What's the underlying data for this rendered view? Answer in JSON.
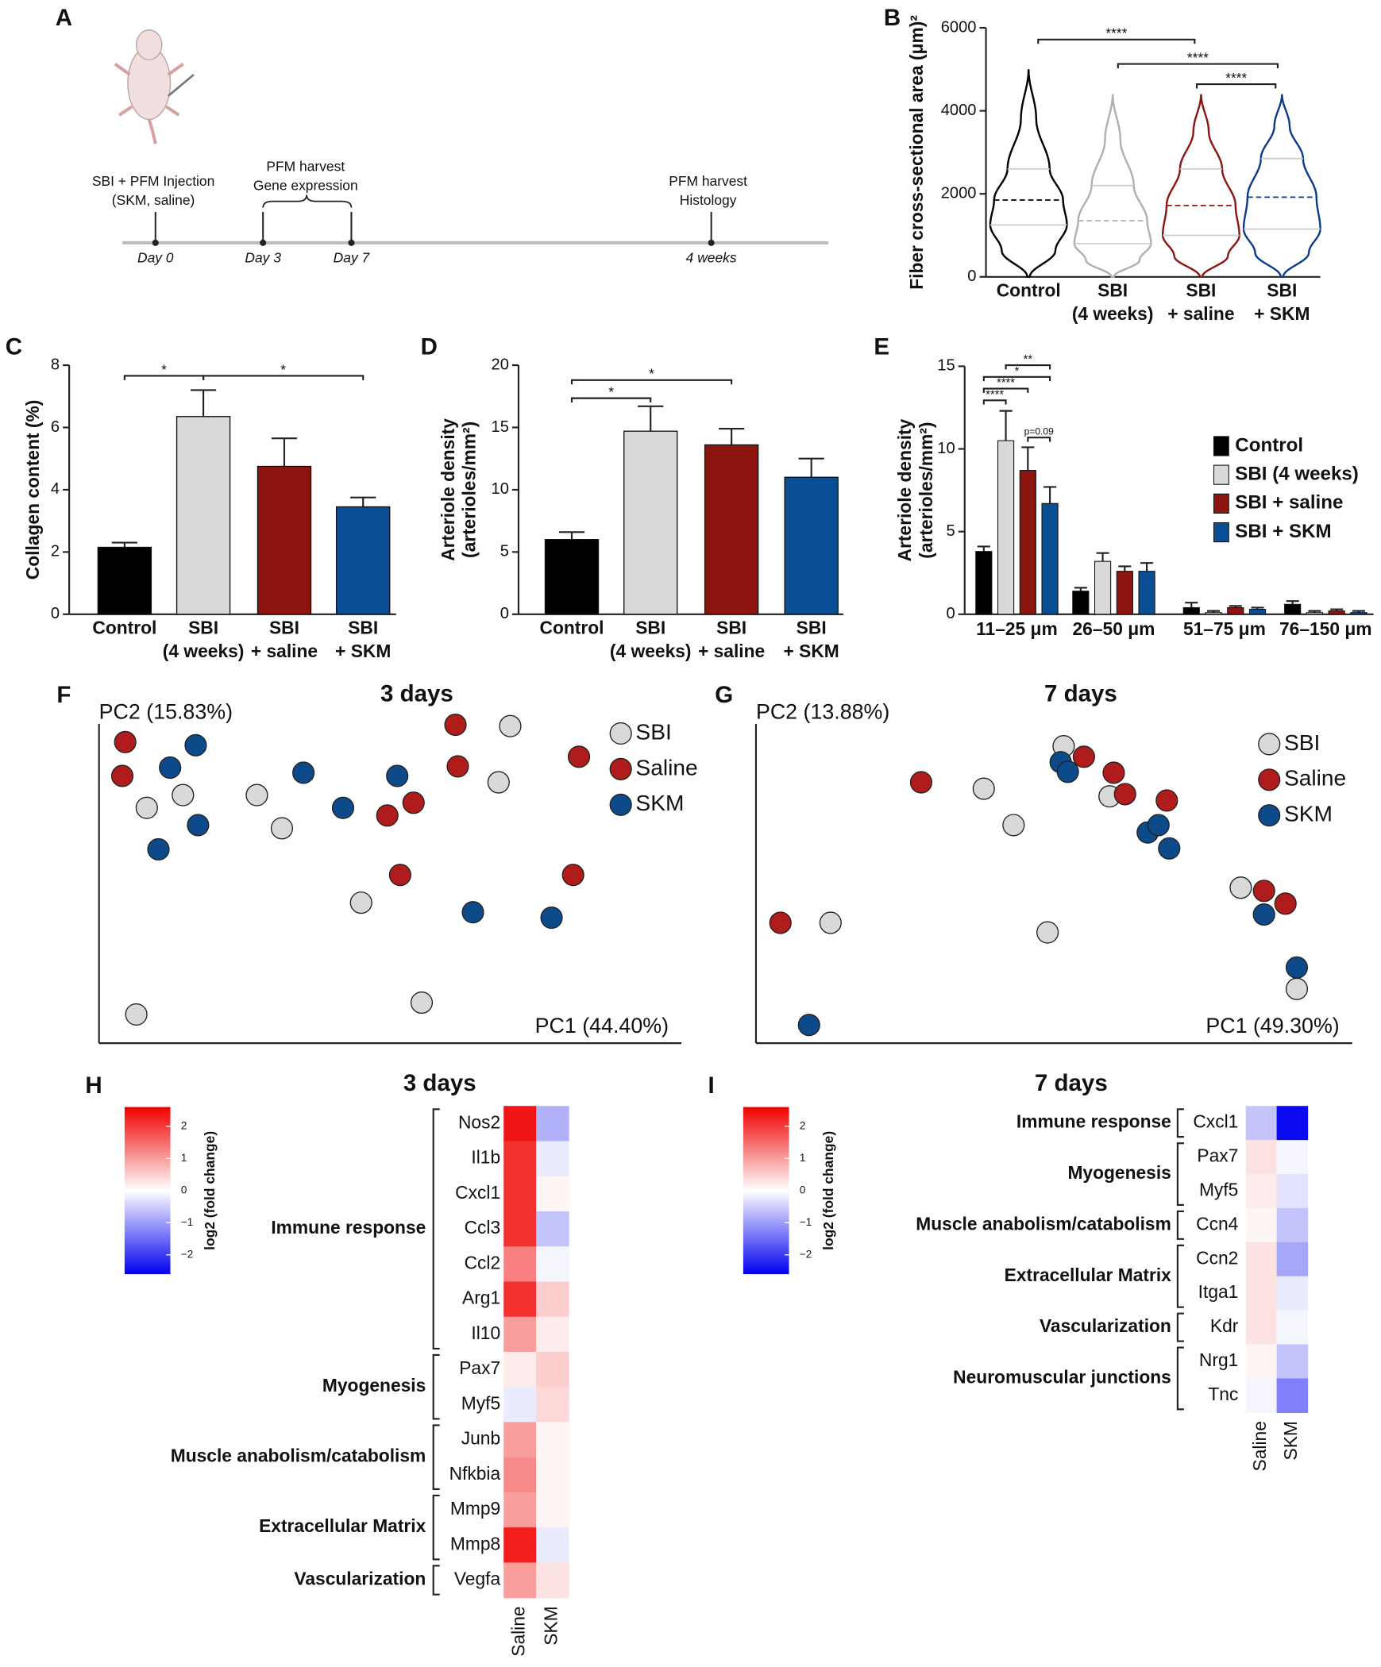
{
  "timeline": {
    "panel": "A",
    "days": [
      "Day 0",
      "Day 3",
      "Day 7",
      "4 weeks"
    ],
    "notes": [
      [
        "SBI + PFM Injection",
        "(SKM, saline)"
      ],
      [
        "PFM harvest",
        "Gene expression"
      ],
      [
        "PFM harvest",
        "Histology"
      ]
    ]
  },
  "chart_data": [
    {
      "panel": "B",
      "type": "violin",
      "categories": [
        [
          "Control"
        ],
        [
          "SBI",
          "(4 weeks)"
        ],
        [
          "SBI",
          "+ saline"
        ],
        [
          "SBI",
          "+ SKM"
        ]
      ],
      "colors": [
        "#000000",
        "#b0b0b0",
        "#8c1515",
        "#0b3c8c"
      ],
      "min": [
        0,
        0,
        0,
        0
      ],
      "q1": [
        1250,
        800,
        1000,
        1150
      ],
      "median": [
        1850,
        1350,
        1720,
        1920
      ],
      "q3": [
        2600,
        2200,
        2600,
        2850
      ],
      "max": [
        5000,
        4400,
        4400,
        4400
      ],
      "ylim": [
        0,
        6000
      ],
      "yticks": [
        0,
        2000,
        4000,
        6000
      ],
      "ylabel": [
        "Fiber cross-sectional area (μm)²"
      ],
      "annotations": [
        "****",
        "****",
        "****"
      ]
    },
    {
      "panel": "C",
      "type": "bar",
      "categories": [
        [
          "Control"
        ],
        [
          "SBI",
          "(4 weeks)"
        ],
        [
          "SBI",
          "+ saline"
        ],
        [
          "SBI",
          "+ SKM"
        ]
      ],
      "colors": [
        "#000000",
        "#d9d9d9",
        "#8c1510",
        "#0a4f96"
      ],
      "values": [
        2.15,
        6.35,
        4.75,
        3.45
      ],
      "errors": [
        0.15,
        0.85,
        0.9,
        0.3
      ],
      "ylim": [
        0,
        8
      ],
      "yticks": [
        0,
        2,
        4,
        6,
        8
      ],
      "ylabel": [
        "Collagen content (%)"
      ],
      "annotations": [
        "*",
        "*"
      ]
    },
    {
      "panel": "D",
      "type": "bar",
      "categories": [
        [
          "Control"
        ],
        [
          "SBI",
          "(4 weeks)"
        ],
        [
          "SBI",
          "+ saline"
        ],
        [
          "SBI",
          "+ SKM"
        ]
      ],
      "colors": [
        "#000000",
        "#d9d9d9",
        "#8c1510",
        "#0a4f96"
      ],
      "values": [
        6.0,
        14.7,
        13.6,
        11.0
      ],
      "errors": [
        0.6,
        2.0,
        1.3,
        1.5
      ],
      "ylim": [
        0,
        20
      ],
      "yticks": [
        0,
        5,
        10,
        15,
        20
      ],
      "ylabel": [
        "Arteriole density",
        "(arterioles/mm²)"
      ],
      "annotations": [
        "*",
        "*"
      ]
    },
    {
      "panel": "E",
      "type": "grouped_bar",
      "categories": [
        "11–25 μm",
        "26–50 μm",
        "51–75 μm",
        "76–150 μm"
      ],
      "series": [
        {
          "name": "Control",
          "color": "#000000",
          "values": [
            3.8,
            1.4,
            0.4,
            0.6
          ],
          "errors": [
            0.3,
            0.2,
            0.3,
            0.2
          ]
        },
        {
          "name": "SBI (4 weeks)",
          "color": "#d9d9d9",
          "values": [
            10.5,
            3.2,
            0.1,
            0.1
          ],
          "errors": [
            1.8,
            0.5,
            0.1,
            0.1
          ]
        },
        {
          "name": "SBI + saline",
          "color": "#8c1510",
          "values": [
            8.7,
            2.6,
            0.4,
            0.2
          ],
          "errors": [
            1.4,
            0.3,
            0.1,
            0.1
          ]
        },
        {
          "name": "SBI + SKM",
          "color": "#0a4f96",
          "values": [
            6.7,
            2.6,
            0.3,
            0.1
          ],
          "errors": [
            1.0,
            0.5,
            0.1,
            0.1
          ]
        }
      ],
      "ylim": [
        0,
        15
      ],
      "yticks": [
        0,
        5,
        10,
        15
      ],
      "ylabel": [
        "Arteriole density",
        "(arterioles/mm²)"
      ],
      "legend": "right",
      "annotations": [
        "****",
        "****",
        "*",
        "**",
        "p=0.09"
      ]
    },
    {
      "panel": "F",
      "type": "scatter",
      "title": "3 days",
      "xlabel": "PC1 (44.40%)",
      "ylabel": "PC2 (15.83%)",
      "xlim": [
        0,
        100
      ],
      "ylim": [
        0,
        100
      ],
      "legend": "upper right",
      "series": [
        {
          "name": "SBI",
          "color": "#d9d9d9",
          "x": [
            6.4,
            8.2,
            14.4,
            27.1,
            31.4,
            45,
            55.4,
            68.6,
            70.6
          ],
          "y": [
            9,
            73.7,
            77.7,
            77.7,
            67.3,
            44,
            12.7,
            81.7,
            99.3
          ]
        },
        {
          "name": "Saline",
          "color": "#b01c1c",
          "x": [
            4.5,
            4,
            49.5,
            54,
            61.2,
            61.6,
            51.7,
            81.4,
            82.4
          ],
          "y": [
            94.3,
            83.7,
            71.3,
            75.3,
            99.7,
            86.7,
            52.7,
            52.7,
            89.7
          ]
        },
        {
          "name": "SKM",
          "color": "#0d4a8a",
          "x": [
            16.6,
            12.2,
            17,
            10.2,
            35.1,
            41.9,
            51.2,
            64.2,
            77.7
          ],
          "y": [
            93.3,
            86.3,
            68.3,
            60.7,
            84.7,
            73.7,
            83.7,
            41,
            39.3
          ]
        }
      ]
    },
    {
      "panel": "G",
      "type": "scatter",
      "title": "7 days",
      "xlabel": "PC1 (49.30%)",
      "ylabel": "PC2 (13.88%)",
      "xlim": [
        0,
        100
      ],
      "ylim": [
        0,
        100
      ],
      "legend": "upper right",
      "series": [
        {
          "name": "SBI",
          "color": "#d9d9d9",
          "x": [
            51.6,
            38.2,
            43.2,
            59.3,
            81.3,
            12.5,
            48.9,
            90.7
          ],
          "y": [
            93,
            79.7,
            68.3,
            77.3,
            48.7,
            37.7,
            34.7,
            17
          ]
        },
        {
          "name": "Saline",
          "color": "#b01c1c",
          "x": [
            27.7,
            55,
            60,
            61.9,
            68.9,
            85.2,
            88.8,
            4.1
          ],
          "y": [
            81.7,
            89.7,
            84.7,
            78,
            76,
            47.7,
            43.7,
            37.7
          ]
        },
        {
          "name": "SKM",
          "color": "#0d4a8a",
          "x": [
            51.1,
            52.3,
            65.7,
            67.5,
            69.3,
            85.2,
            90.7,
            8.9
          ],
          "y": [
            88,
            85,
            66,
            68.3,
            61,
            40.3,
            23.7,
            5.7
          ]
        }
      ]
    },
    {
      "panel": "H",
      "type": "heatmap",
      "title": "3 days",
      "columns": [
        "Saline",
        "SKM"
      ],
      "rows": [
        "Nos2",
        "Il1b",
        "Cxcl1",
        "Ccl3",
        "Ccl2",
        "Arg1",
        "Il10",
        "Pax7",
        "Myf5",
        "Junb",
        "Nfkbia",
        "Mmp9",
        "Mmp8",
        "Vegfa"
      ],
      "values": [
        [
          2.4,
          -0.8
        ],
        [
          2.1,
          -0.2
        ],
        [
          2.1,
          0.1
        ],
        [
          2.1,
          -0.6
        ],
        [
          1.3,
          -0.1
        ],
        [
          2.1,
          0.5
        ],
        [
          1.0,
          0.2
        ],
        [
          0.2,
          0.5
        ],
        [
          -0.2,
          0.4
        ],
        [
          1.0,
          0.1
        ],
        [
          1.2,
          0.1
        ],
        [
          1.0,
          0.1
        ],
        [
          2.3,
          -0.2
        ],
        [
          1.0,
          0.3
        ]
      ],
      "groups": [
        {
          "name": "Immune response",
          "rows": [
            0,
            6
          ]
        },
        {
          "name": "Myogenesis",
          "rows": [
            7,
            8
          ]
        },
        {
          "name": "Muscle anabolism/catabolism",
          "rows": [
            9,
            10
          ]
        },
        {
          "name": "Extracellular Matrix",
          "rows": [
            11,
            12
          ]
        },
        {
          "name": "Vascularization",
          "rows": [
            13,
            13
          ]
        }
      ],
      "vlim": [
        -2.6,
        2.6
      ],
      "cmap": [
        "#0000f0",
        "#ffffff",
        "#f00000"
      ],
      "cticks": [
        2,
        1,
        0,
        {
          "value": -1,
          "label": "−1"
        },
        {
          "value": -2,
          "label": "−2"
        }
      ],
      "clabel": "log2 (fold change)"
    },
    {
      "panel": "I",
      "type": "heatmap",
      "title": "7 days",
      "columns": [
        "Saline",
        "SKM"
      ],
      "rows": [
        "Cxcl1",
        "Pax7",
        "Myf5",
        "Ccn4",
        "Ccn2",
        "Itga1",
        "Kdr",
        "Nrg1",
        "Tnc"
      ],
      "values": [
        [
          -0.6,
          -2.5
        ],
        [
          0.3,
          -0.1
        ],
        [
          0.2,
          -0.3
        ],
        [
          0.1,
          -0.6
        ],
        [
          0.3,
          -0.9
        ],
        [
          0.3,
          -0.2
        ],
        [
          0.3,
          -0.1
        ],
        [
          0.1,
          -0.6
        ],
        [
          -0.1,
          -1.3
        ]
      ],
      "groups": [
        {
          "name": "Immune response",
          "rows": [
            0,
            0
          ]
        },
        {
          "name": "Myogenesis",
          "rows": [
            1,
            2
          ]
        },
        {
          "name": "Muscle anabolism/catabolism",
          "rows": [
            3,
            3
          ]
        },
        {
          "name": "Extracellular Matrix",
          "rows": [
            4,
            5
          ]
        },
        {
          "name": "Vascularization",
          "rows": [
            6,
            6
          ]
        },
        {
          "name": "Neuromuscular junctions",
          "rows": [
            7,
            8
          ]
        }
      ],
      "vlim": [
        -2.6,
        2.6
      ],
      "cmap": [
        "#0000f0",
        "#ffffff",
        "#f00000"
      ],
      "cticks": [
        2,
        1,
        0,
        {
          "value": -1,
          "label": "−1"
        },
        {
          "value": -2,
          "label": "−2"
        }
      ],
      "clabel": "log2 (fold change)"
    }
  ]
}
